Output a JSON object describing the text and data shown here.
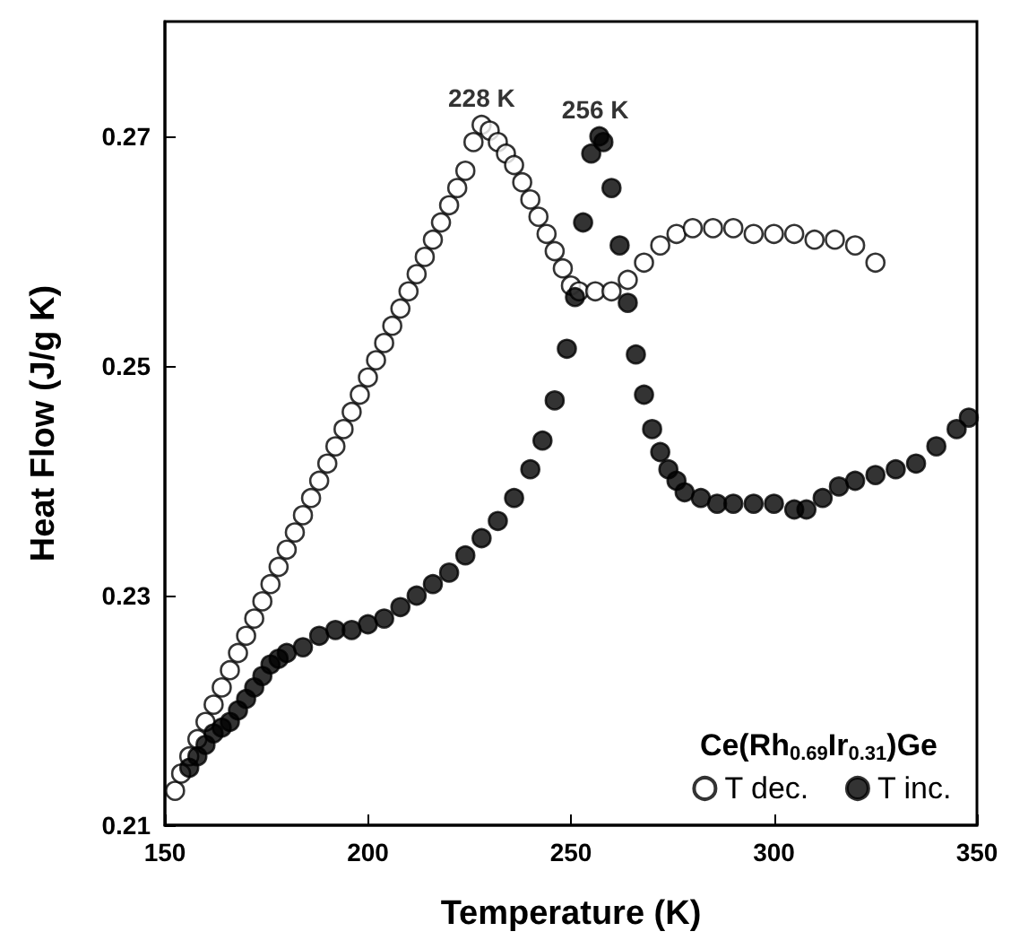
{
  "chart_data": {
    "type": "scatter",
    "xlabel": "Temperature (K)",
    "ylabel": "Heat Flow (J/g K)",
    "legend_title": "Ce(Rh$_{0.69}$Ir$_{0.31}$)Ge",
    "xlim": [
      150,
      350
    ],
    "xticks": [
      150,
      200,
      250,
      300,
      350
    ],
    "ylim": [
      0.21,
      0.28
    ],
    "yticks": [
      0.21,
      0.23,
      0.25,
      0.27
    ],
    "legend": "bottom right",
    "grid": false,
    "marker": "circle",
    "annotations": [
      {
        "text": "228 K",
        "x": 228,
        "y": 0.271
      },
      {
        "text": "256 K",
        "x": 256,
        "y": 0.27
      }
    ],
    "series": [
      {
        "name": "T dec.",
        "color": "#ffffff",
        "x": [
          152.5,
          154,
          156,
          158,
          160,
          162,
          164,
          166,
          168,
          170,
          172,
          174,
          176,
          178,
          180,
          182,
          184,
          186,
          188,
          190,
          192,
          194,
          196,
          198,
          200,
          202,
          204,
          206,
          208,
          210,
          212,
          214,
          216,
          218,
          220,
          222,
          224,
          226,
          228,
          230,
          232,
          234,
          236,
          238,
          240,
          242,
          244,
          246,
          248,
          250,
          252,
          256,
          260,
          264,
          268,
          272,
          276,
          280,
          285,
          290,
          295,
          300,
          305,
          310,
          315,
          320,
          325
        ],
        "values": [
          0.213,
          0.2145,
          0.216,
          0.2175,
          0.219,
          0.2205,
          0.222,
          0.2235,
          0.225,
          0.2265,
          0.228,
          0.2295,
          0.231,
          0.2325,
          0.234,
          0.2355,
          0.237,
          0.2385,
          0.24,
          0.2415,
          0.243,
          0.2445,
          0.246,
          0.2475,
          0.249,
          0.2505,
          0.252,
          0.2535,
          0.255,
          0.2565,
          0.258,
          0.2595,
          0.261,
          0.2625,
          0.264,
          0.2655,
          0.267,
          0.2695,
          0.271,
          0.2705,
          0.2695,
          0.2685,
          0.2675,
          0.266,
          0.2645,
          0.263,
          0.2615,
          0.26,
          0.2585,
          0.257,
          0.2565,
          0.2565,
          0.2565,
          0.2575,
          0.259,
          0.2605,
          0.2615,
          0.262,
          0.262,
          0.262,
          0.2615,
          0.2615,
          0.2615,
          0.261,
          0.261,
          0.2605,
          0.259
        ]
      },
      {
        "name": "T inc.",
        "color": "#000000",
        "x": [
          156,
          158,
          160,
          162,
          164,
          166,
          168,
          170,
          172,
          174,
          176,
          178,
          180,
          184,
          188,
          192,
          196,
          200,
          204,
          208,
          212,
          216,
          220,
          224,
          228,
          232,
          236,
          240,
          243,
          246,
          249,
          251,
          253,
          255,
          257,
          258,
          260,
          262,
          264,
          266,
          268,
          270,
          272,
          274,
          276,
          278,
          282,
          286,
          290,
          295,
          300,
          305,
          308,
          312,
          316,
          320,
          325,
          330,
          335,
          340,
          345,
          348
        ],
        "values": [
          0.215,
          0.216,
          0.217,
          0.218,
          0.2185,
          0.219,
          0.22,
          0.221,
          0.222,
          0.223,
          0.224,
          0.2245,
          0.225,
          0.2255,
          0.2265,
          0.227,
          0.227,
          0.2275,
          0.228,
          0.229,
          0.23,
          0.231,
          0.232,
          0.2335,
          0.235,
          0.2365,
          0.2385,
          0.241,
          0.2435,
          0.247,
          0.2515,
          0.256,
          0.2625,
          0.2685,
          0.27,
          0.2695,
          0.2655,
          0.2605,
          0.2555,
          0.251,
          0.2475,
          0.2445,
          0.2425,
          0.241,
          0.24,
          0.239,
          0.2385,
          0.238,
          0.238,
          0.238,
          0.238,
          0.2375,
          0.2375,
          0.2385,
          0.2395,
          0.24,
          0.2405,
          0.241,
          0.2415,
          0.243,
          0.2445,
          0.2455
        ]
      }
    ]
  }
}
